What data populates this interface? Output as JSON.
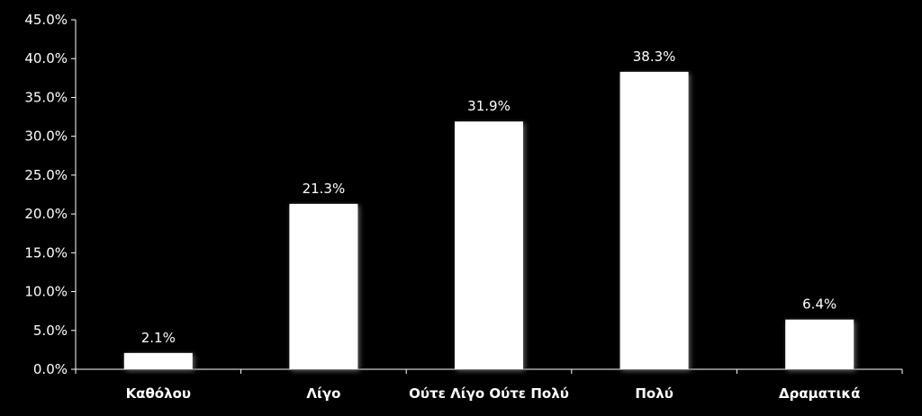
{
  "chart_data": {
    "type": "bar",
    "categories": [
      "Καθόλου",
      "Λίγο",
      "Ούτε Λίγο Ούτε Πολύ",
      "Πολύ",
      "Δραματικά"
    ],
    "values": [
      2.1,
      21.3,
      31.9,
      38.3,
      6.4
    ],
    "data_labels": [
      "2.1%",
      "21.3%",
      "31.9%",
      "38.3%",
      "6.4%"
    ],
    "ylim": [
      0,
      45
    ],
    "yticks": [
      0,
      5,
      10,
      15,
      20,
      25,
      30,
      35,
      40,
      45
    ],
    "ytick_labels": [
      "0.0%",
      "5.0%",
      "10.0%",
      "15.0%",
      "20.0%",
      "25.0%",
      "30.0%",
      "35.0%",
      "40.0%",
      "45.0%"
    ],
    "grid": false,
    "legend": "none",
    "title": "",
    "xlabel": "",
    "ylabel": "",
    "colors": {
      "background": "#000000",
      "bar": "#ffffff",
      "axis": "#ffffff",
      "text": "#ffffff"
    }
  }
}
